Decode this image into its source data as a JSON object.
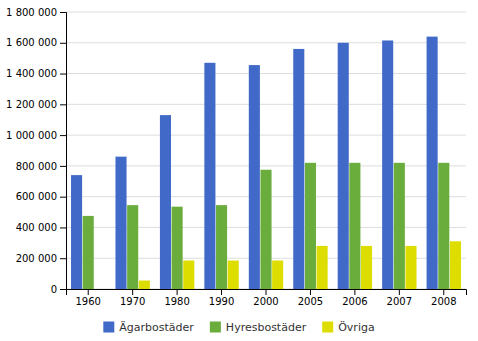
{
  "chart_data": {
    "type": "bar",
    "categories": [
      "1960",
      "1970",
      "1980",
      "1990",
      "2000",
      "2005",
      "2006",
      "2007",
      "2008"
    ],
    "series": [
      {
        "name": "Ägarbostäder",
        "color": "#4169C8",
        "values": [
          740000,
          860000,
          1130000,
          1470000,
          1455000,
          1560000,
          1600000,
          1615000,
          1640000
        ]
      },
      {
        "name": "Hyresbostäder",
        "color": "#6AAD3C",
        "values": [
          475000,
          545000,
          535000,
          545000,
          775000,
          820000,
          820000,
          820000,
          820000
        ]
      },
      {
        "name": "Övriga",
        "color": "#DDDD00",
        "values": [
          0,
          55000,
          185000,
          185000,
          185000,
          280000,
          280000,
          280000,
          310000
        ]
      }
    ],
    "ylim": [
      0,
      1800000
    ],
    "yticks": [
      0,
      {
        "value": 200000,
        "label": "200 000"
      },
      {
        "value": 400000,
        "label": "400 000"
      },
      {
        "value": 600000,
        "label": "600 000"
      },
      {
        "value": 800000,
        "label": "800 000"
      },
      {
        "value": 1000000,
        "label": "1 000 000"
      },
      {
        "value": 1200000,
        "label": "1 200 000"
      },
      {
        "value": 1400000,
        "label": "1 400 000"
      },
      {
        "value": 1600000,
        "label": "1 600 000"
      },
      {
        "value": 1800000,
        "label": "1 800 000"
      }
    ],
    "grid": true,
    "legend": "bottom"
  }
}
